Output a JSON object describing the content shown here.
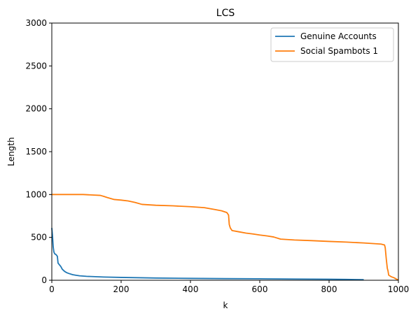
{
  "chart_data": {
    "type": "line",
    "title": "LCS",
    "xlabel": "k",
    "ylabel": "Length",
    "xlim": [
      0,
      1000
    ],
    "ylim": [
      0,
      3000
    ],
    "xticks": [
      0,
      200,
      400,
      600,
      800,
      1000
    ],
    "yticks": [
      0,
      500,
      1000,
      1500,
      2000,
      2500,
      3000
    ],
    "grid": false,
    "legend_position": "top-right",
    "series": [
      {
        "name": "Genuine Accounts",
        "color": "#1f77b4",
        "points": [
          [
            0,
            610
          ],
          [
            2,
            520
          ],
          [
            4,
            390
          ],
          [
            6,
            330
          ],
          [
            8,
            310
          ],
          [
            12,
            300
          ],
          [
            16,
            280
          ],
          [
            18,
            200
          ],
          [
            22,
            180
          ],
          [
            26,
            160
          ],
          [
            30,
            130
          ],
          [
            35,
            110
          ],
          [
            40,
            95
          ],
          [
            45,
            85
          ],
          [
            50,
            78
          ],
          [
            60,
            65
          ],
          [
            70,
            58
          ],
          [
            80,
            52
          ],
          [
            100,
            46
          ],
          [
            150,
            38
          ],
          [
            200,
            33
          ],
          [
            300,
            26
          ],
          [
            400,
            22
          ],
          [
            500,
            19
          ],
          [
            600,
            17
          ],
          [
            700,
            14
          ],
          [
            800,
            12
          ],
          [
            850,
            10
          ],
          [
            880,
            8
          ],
          [
            900,
            7
          ]
        ]
      },
      {
        "name": "Social Spambots 1",
        "color": "#ff7f0e",
        "points": [
          [
            0,
            1000
          ],
          [
            20,
            1000
          ],
          [
            90,
            1000
          ],
          [
            100,
            998
          ],
          [
            140,
            990
          ],
          [
            150,
            978
          ],
          [
            160,
            965
          ],
          [
            180,
            942
          ],
          [
            200,
            935
          ],
          [
            220,
            925
          ],
          [
            240,
            908
          ],
          [
            260,
            885
          ],
          [
            280,
            880
          ],
          [
            300,
            875
          ],
          [
            350,
            868
          ],
          [
            400,
            858
          ],
          [
            440,
            847
          ],
          [
            450,
            840
          ],
          [
            470,
            825
          ],
          [
            490,
            810
          ],
          [
            505,
            790
          ],
          [
            510,
            760
          ],
          [
            512,
            650
          ],
          [
            515,
            610
          ],
          [
            520,
            580
          ],
          [
            540,
            565
          ],
          [
            560,
            550
          ],
          [
            580,
            540
          ],
          [
            600,
            528
          ],
          [
            620,
            518
          ],
          [
            640,
            505
          ],
          [
            660,
            480
          ],
          [
            700,
            470
          ],
          [
            750,
            462
          ],
          [
            800,
            453
          ],
          [
            850,
            445
          ],
          [
            900,
            435
          ],
          [
            950,
            422
          ],
          [
            960,
            412
          ],
          [
            962,
            380
          ],
          [
            965,
            250
          ],
          [
            968,
            140
          ],
          [
            970,
            110
          ],
          [
            972,
            60
          ],
          [
            980,
            40
          ],
          [
            988,
            28
          ],
          [
            995,
            12
          ],
          [
            1000,
            2
          ]
        ]
      }
    ]
  }
}
